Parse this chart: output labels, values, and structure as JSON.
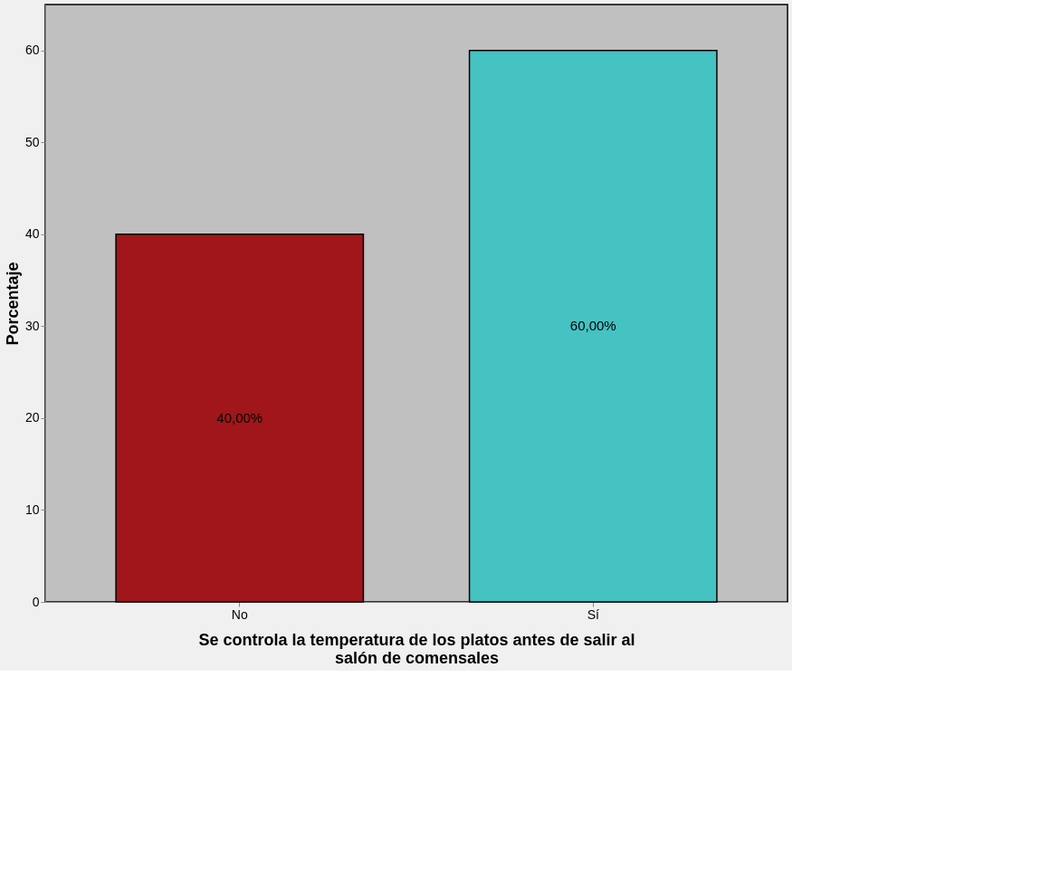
{
  "chart_data": {
    "type": "bar",
    "xlabel": "Se controla la temperatura de los platos antes de salir al salón de comensales",
    "ylabel": "Porcentaje",
    "categories": [
      "No",
      "Sí"
    ],
    "values": [
      40,
      60
    ],
    "colors": [
      "#a0161a",
      "#45c2c2"
    ],
    "value_labels": [
      "40,00%",
      "60,00%"
    ],
    "ylim": [
      0,
      65
    ],
    "yticks": [
      0,
      10,
      20,
      30,
      40,
      50,
      60
    ],
    "grid": false,
    "legend": false
  }
}
